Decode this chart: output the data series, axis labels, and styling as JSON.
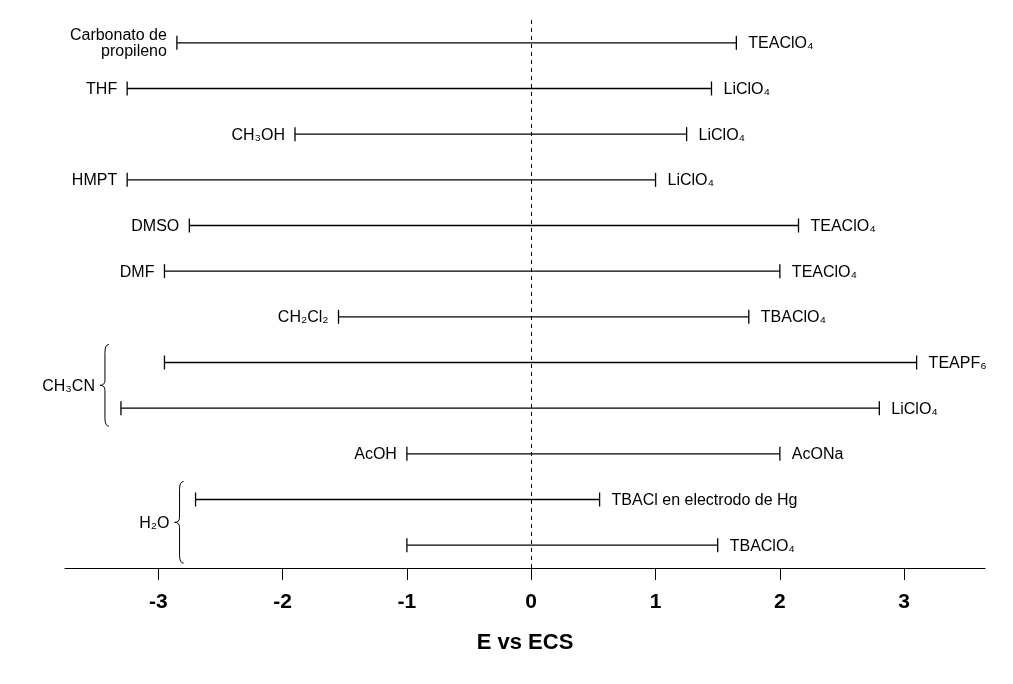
{
  "chart_data": {
    "type": "bar",
    "orientation": "horizontal",
    "xlabel": "E vs ECS",
    "categories": [
      "Carbonato de\npropileno",
      "THF",
      "CH₃OH",
      "HMPT",
      "DMSO",
      "DMF",
      "CH₂Cl₂",
      null,
      null,
      "AcOH",
      null,
      null
    ],
    "base": [
      -2.85,
      -3.25,
      -1.9,
      -3.25,
      -2.75,
      -2.95,
      -1.55,
      -2.95,
      -3.3,
      -1.0,
      -2.7,
      -1.0
    ],
    "values": [
      4.5,
      4.7,
      3.15,
      4.25,
      4.9,
      4.95,
      3.3,
      6.05,
      6.1,
      3.0,
      3.25,
      2.5
    ],
    "value_labels": [
      "TEAClO₄",
      "LiClO₄",
      "LiClO₄",
      "LiClO₄",
      "TEAClO₄",
      "TEAClO₄",
      "TBAClO₄",
      "TEAPF₆",
      "LiClO₄",
      "AcONa",
      "TBACl en electrodo de Hg",
      "TBAClO₄"
    ],
    "color": "#000000",
    "annotations": [
      "CH₃CN",
      "H₂O"
    ],
    "xlim": [
      -3.75,
      3.65
    ],
    "xticks": [
      -3,
      -2,
      -1,
      0,
      1,
      2,
      3
    ],
    "ref_lines": [
      {
        "axis": "x",
        "value": 0,
        "line_style": "dashed",
        "color": "#000000"
      }
    ],
    "grid": false
  }
}
